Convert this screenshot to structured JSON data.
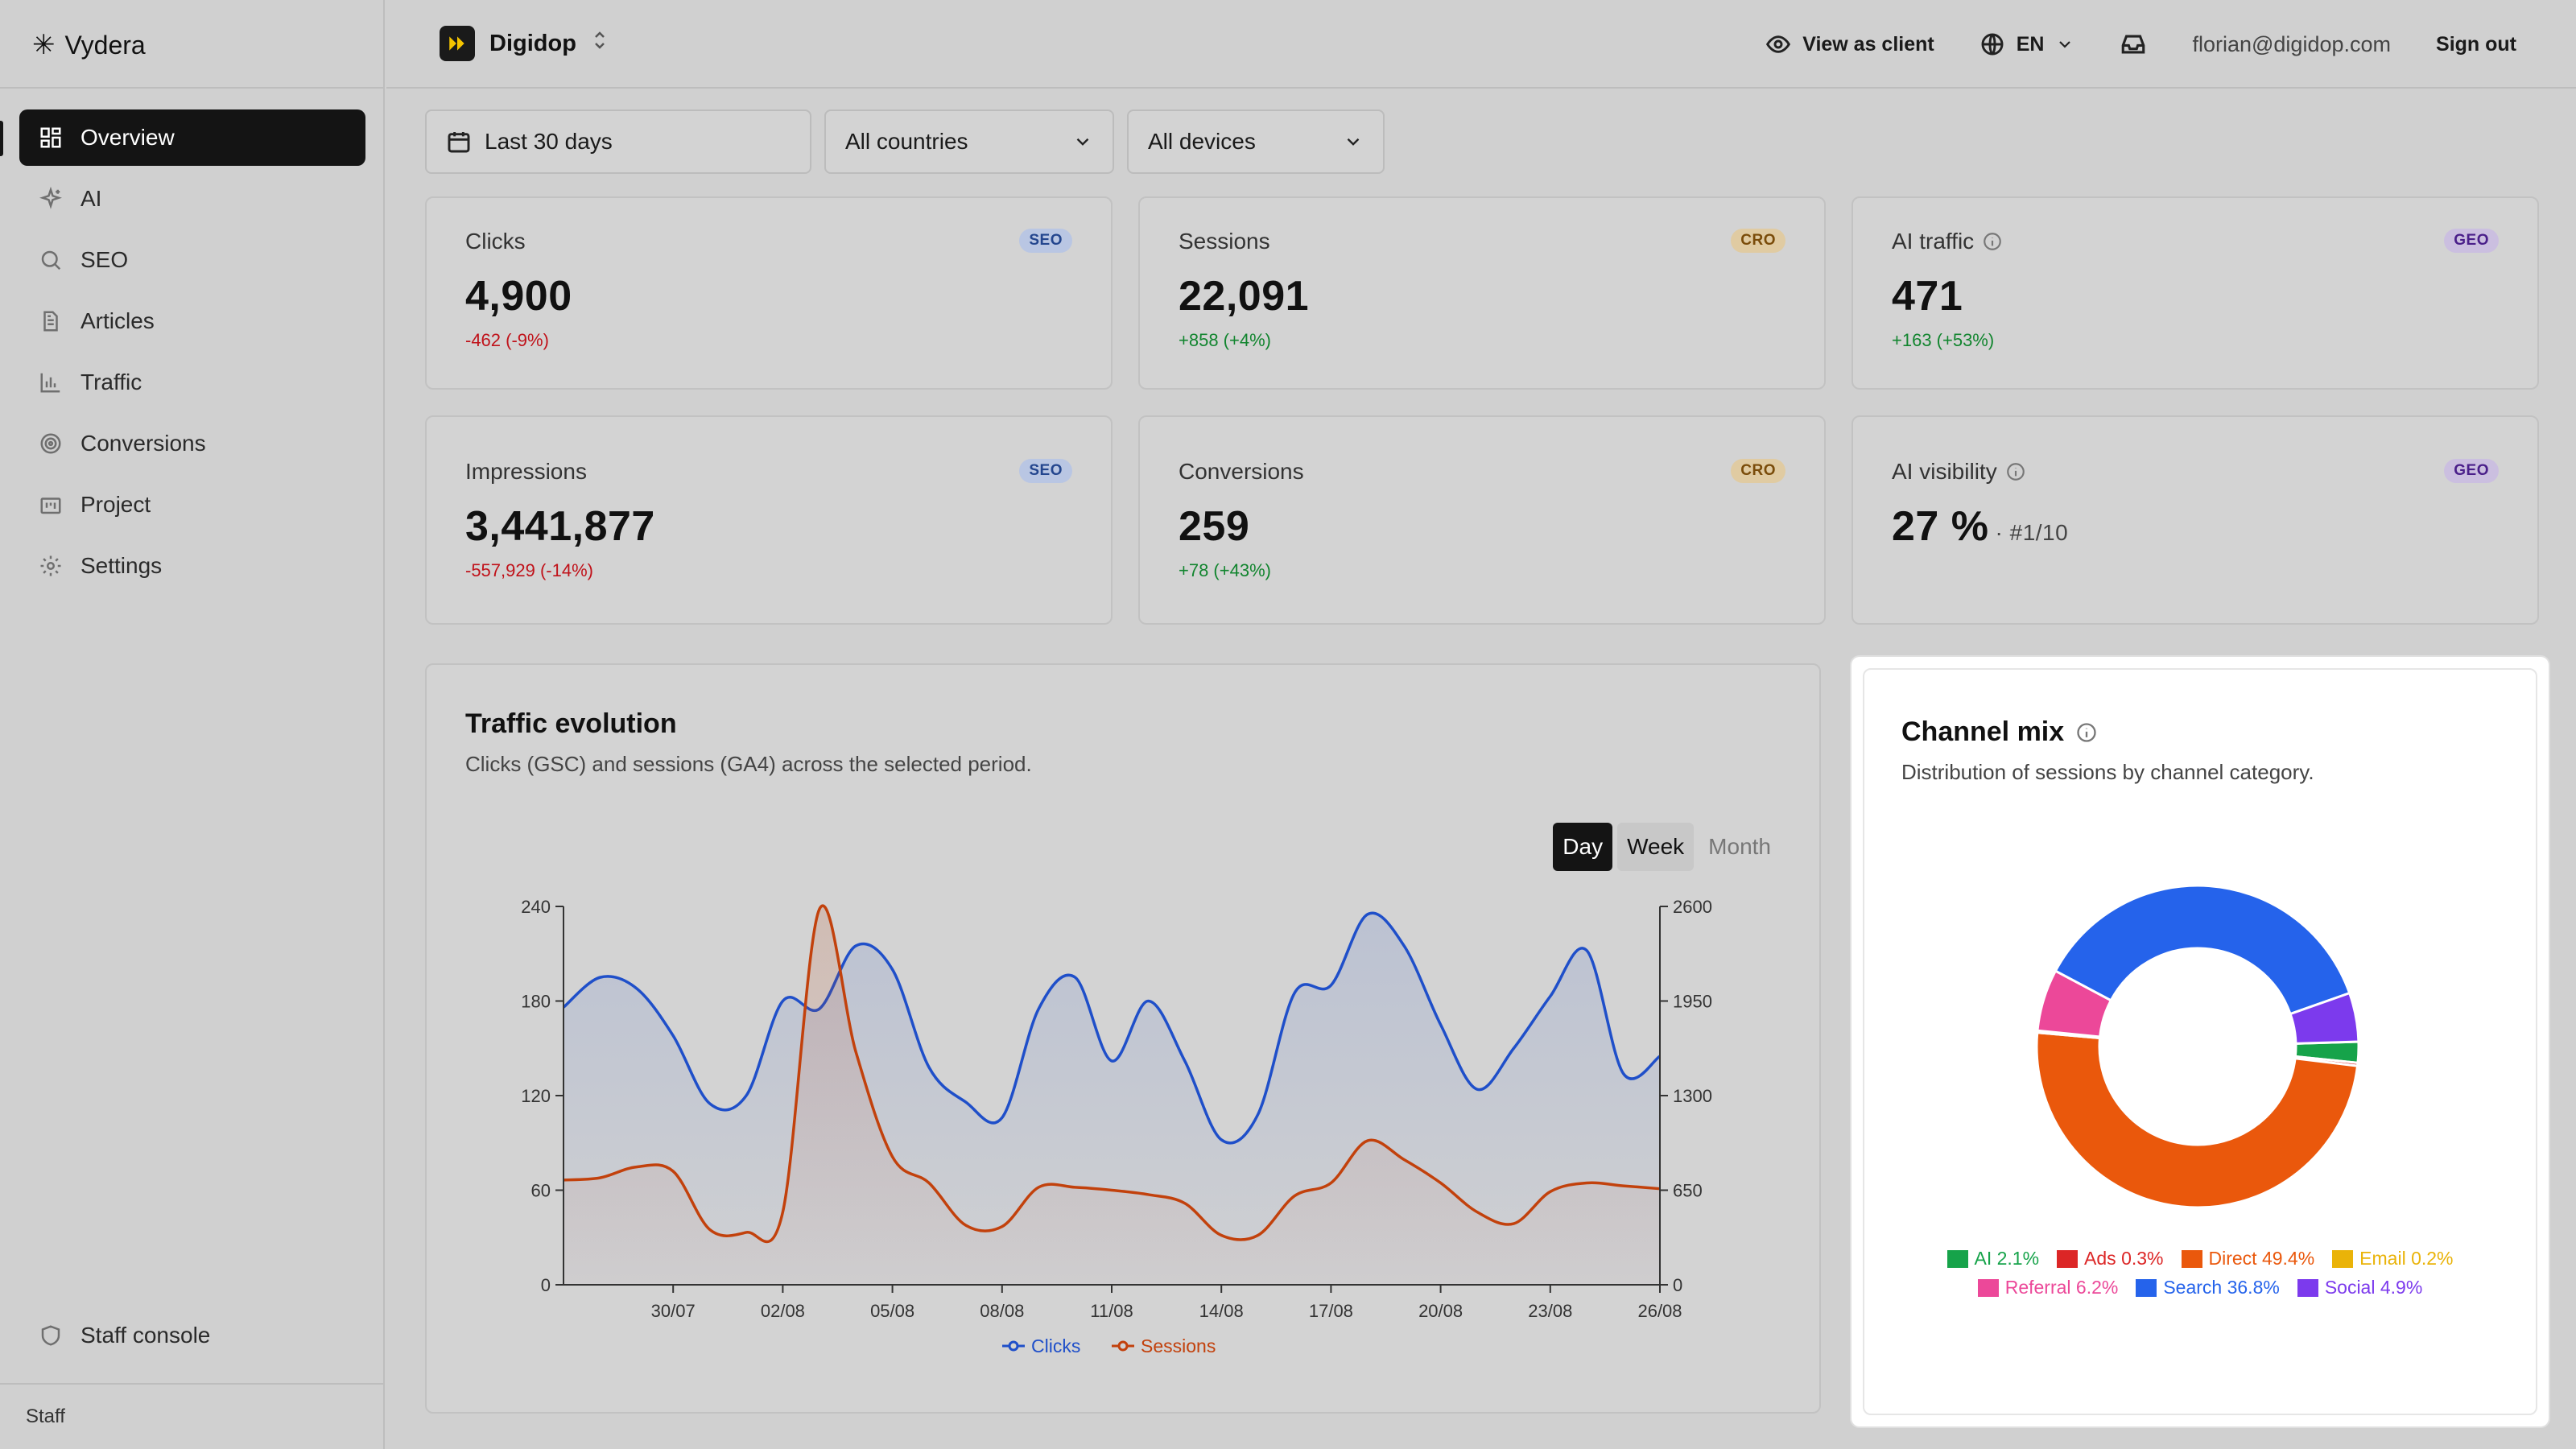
{
  "brand": {
    "name": "Vydera"
  },
  "sidebar": {
    "items": [
      {
        "label": "Overview",
        "icon": "grid-icon",
        "active": true
      },
      {
        "label": "AI",
        "icon": "sparkles-icon"
      },
      {
        "label": "SEO",
        "icon": "search-icon"
      },
      {
        "label": "Articles",
        "icon": "document-icon"
      },
      {
        "label": "Traffic",
        "icon": "bar-chart-icon"
      },
      {
        "label": "Conversions",
        "icon": "target-icon"
      },
      {
        "label": "Project",
        "icon": "briefcase-icon"
      },
      {
        "label": "Settings",
        "icon": "gear-icon"
      }
    ],
    "staff_console": "Staff console",
    "footer_label": "Staff"
  },
  "header": {
    "project_name": "Digidop",
    "view_as_client": "View as client",
    "language": "EN",
    "email": "florian@digidop.com",
    "sign_out": "Sign out"
  },
  "filters": {
    "period": "Last 30 days",
    "country": "All countries",
    "device": "All devices"
  },
  "stats": [
    {
      "label": "Clicks",
      "badge": "SEO",
      "value": "4,900",
      "delta": "-462 (-9%)",
      "trend": "negative"
    },
    {
      "label": "Sessions",
      "badge": "CRO",
      "value": "22,091",
      "delta": "+858 (+4%)",
      "trend": "positive"
    },
    {
      "label": "AI traffic",
      "badge": "GEO",
      "value": "471",
      "delta": "+163 (+53%)",
      "trend": "positive",
      "info": true
    },
    {
      "label": "Impressions",
      "badge": "SEO",
      "value": "3,441,877",
      "delta": "-557,929 (-14%)",
      "trend": "negative"
    },
    {
      "label": "Conversions",
      "badge": "CRO",
      "value": "259",
      "delta": "+78 (+43%)",
      "trend": "positive"
    },
    {
      "label": "AI visibility",
      "badge": "GEO",
      "value": "27 %",
      "rank": "· #1/10",
      "info": true
    }
  ],
  "traffic": {
    "title": "Traffic evolution",
    "subtitle": "Clicks (GSC) and sessions (GA4) across the selected period.",
    "granularity": {
      "day": "Day",
      "week": "Week",
      "month": "Month",
      "selected": "Day"
    }
  },
  "channel_mix": {
    "title": "Channel mix",
    "subtitle": "Distribution of sessions by channel category."
  },
  "chart_data": [
    {
      "type": "line",
      "x": [
        "27/07",
        "28/07",
        "29/07",
        "30/07",
        "31/07",
        "01/08",
        "02/08",
        "03/08",
        "04/08",
        "05/08",
        "06/08",
        "07/08",
        "08/08",
        "09/08",
        "10/08",
        "11/08",
        "12/08",
        "13/08",
        "14/08",
        "15/08",
        "16/08",
        "17/08",
        "18/08",
        "19/08",
        "20/08",
        "21/08",
        "22/08",
        "23/08",
        "24/08",
        "25/08",
        "26/08"
      ],
      "xticks": [
        "30/07",
        "02/08",
        "05/08",
        "08/08",
        "11/08",
        "14/08",
        "17/08",
        "20/08",
        "23/08",
        "26/08"
      ],
      "series": [
        {
          "name": "Clicks",
          "axis": "left",
          "color": "#1f4fc9",
          "area": true,
          "values": [
            176,
            195,
            188,
            158,
            115,
            120,
            180,
            175,
            215,
            200,
            138,
            116,
            106,
            175,
            195,
            142,
            180,
            142,
            92,
            108,
            185,
            190,
            235,
            215,
            165,
            124,
            150,
            183,
            212,
            134,
            145
          ]
        },
        {
          "name": "Sessions",
          "axis": "right",
          "color": "#c2410c",
          "area": true,
          "values": [
            720,
            735,
            810,
            780,
            380,
            360,
            500,
            2580,
            1600,
            880,
            700,
            410,
            400,
            670,
            670,
            650,
            620,
            560,
            340,
            340,
            610,
            700,
            990,
            860,
            700,
            500,
            420,
            640,
            700,
            680,
            660
          ]
        }
      ],
      "yleft": {
        "min": 0,
        "max": 240,
        "ticks": [
          0,
          60,
          120,
          180,
          240
        ]
      },
      "yright": {
        "min": 0,
        "max": 2600,
        "ticks": [
          0,
          650,
          1300,
          1950,
          2600
        ]
      },
      "legend": "bottom",
      "grid": false
    },
    {
      "type": "pie",
      "donut": true,
      "labels": [
        "AI",
        "Ads",
        "Direct",
        "Email",
        "Referral",
        "Search",
        "Social"
      ],
      "values": [
        2.1,
        0.3,
        49.4,
        0.2,
        6.2,
        36.8,
        4.9
      ],
      "display": [
        "AI 2.1%",
        "Ads 0.3%",
        "Direct 49.4%",
        "Email 0.2%",
        "Referral 6.2%",
        "Search 36.8%",
        "Social 4.9%"
      ],
      "colors": [
        "#16a34a",
        "#dc2626",
        "#ea580c",
        "#eab308",
        "#ec4899",
        "#2563eb",
        "#7c3aed"
      ],
      "legend": "bottom"
    }
  ]
}
